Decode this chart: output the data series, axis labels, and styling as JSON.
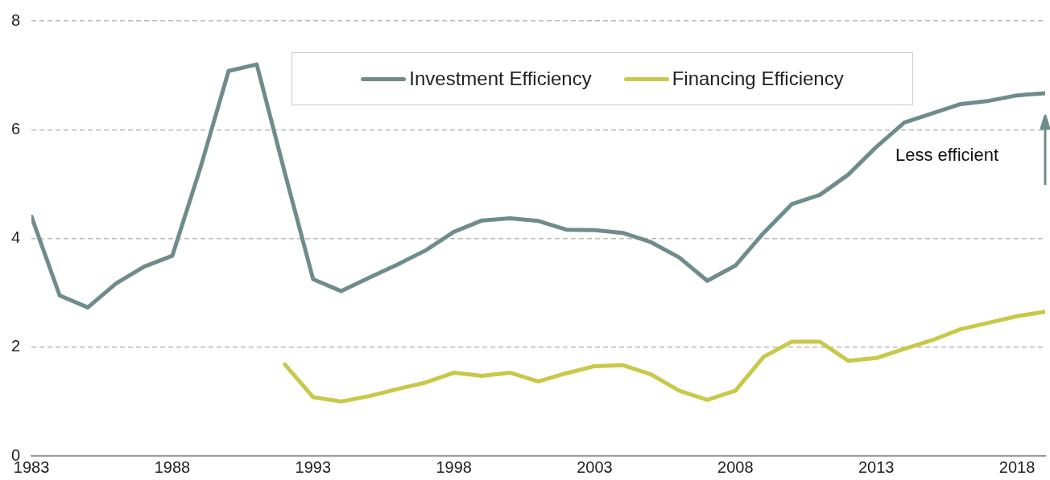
{
  "chart_data": {
    "type": "line",
    "x": [
      1983,
      1984,
      1985,
      1986,
      1987,
      1988,
      1989,
      1990,
      1991,
      1992,
      1993,
      1994,
      1995,
      1996,
      1997,
      1998,
      1999,
      2000,
      2001,
      2002,
      2003,
      2004,
      2005,
      2006,
      2007,
      2008,
      2009,
      2010,
      2011,
      2012,
      2013,
      2014,
      2015,
      2016,
      2017,
      2018,
      2019
    ],
    "series": [
      {
        "name": "Investment Efficiency",
        "color": "#6f8c8c",
        "values": [
          4.4,
          2.95,
          2.73,
          3.17,
          3.48,
          3.68,
          5.3,
          7.08,
          7.2,
          5.2,
          3.25,
          3.03,
          3.28,
          3.52,
          3.78,
          4.12,
          4.33,
          4.37,
          4.32,
          4.16,
          4.15,
          4.1,
          3.93,
          3.65,
          3.22,
          3.5,
          4.1,
          4.63,
          4.8,
          5.17,
          5.68,
          6.13,
          6.3,
          6.47,
          6.53,
          6.63,
          6.67
        ]
      },
      {
        "name": "Financing Efficiency",
        "color": "#c8c84a",
        "values": [
          null,
          null,
          null,
          null,
          null,
          null,
          null,
          null,
          null,
          1.68,
          1.08,
          1.0,
          1.1,
          1.23,
          1.35,
          1.53,
          1.47,
          1.53,
          1.37,
          1.52,
          1.65,
          1.67,
          1.5,
          1.2,
          1.03,
          1.2,
          1.82,
          2.1,
          2.1,
          1.75,
          1.8,
          1.97,
          2.13,
          2.33,
          2.45,
          2.57,
          2.65
        ]
      }
    ],
    "xlim": [
      1983,
      2019
    ],
    "xticks": [
      1983,
      1988,
      1993,
      1998,
      2003,
      2008,
      2013,
      2018
    ],
    "ylim": [
      0,
      8
    ],
    "yticks": [
      0,
      2,
      4,
      6,
      8
    ],
    "grid": "y",
    "legend": "top",
    "marker": "none",
    "line_style": "solid",
    "annotations": [
      "Less efficient"
    ]
  }
}
